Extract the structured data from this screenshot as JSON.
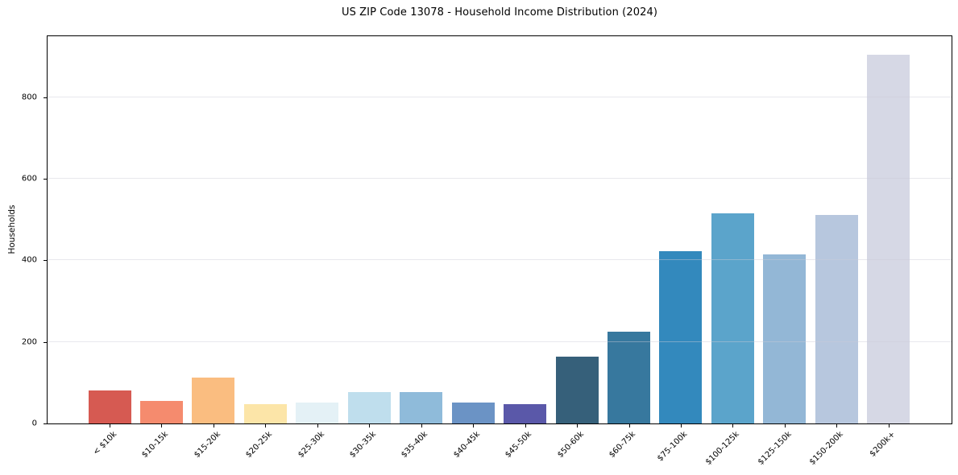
{
  "chart_data": {
    "type": "bar",
    "title": "US ZIP Code 13078 - Household Income Distribution (2024)",
    "xlabel": "",
    "ylabel": "Households",
    "categories": [
      "< $10k",
      "$10-15k",
      "$15-20k",
      "$20-25k",
      "$25-30k",
      "$30-35k",
      "$35-40k",
      "$40-45k",
      "$45-50k",
      "$50-60k",
      "$60-75k",
      "$75-100k",
      "$100-125k",
      "$125-150k",
      "$150-200k",
      "$200k+"
    ],
    "values": [
      81,
      55,
      112,
      47,
      51,
      78,
      78,
      52,
      48,
      163,
      226,
      422,
      516,
      414,
      511,
      905
    ],
    "bar_colors": [
      "#d65a52",
      "#f58b6e",
      "#fabd80",
      "#fce5a8",
      "#e4f1f6",
      "#bfdeed",
      "#8fbbda",
      "#6b93c5",
      "#5a58a9",
      "#36607a",
      "#37789e",
      "#3389bd",
      "#5ba4cb",
      "#93b7d6",
      "#b7c7de",
      "#d6d8e5"
    ],
    "yticks": [
      0,
      200,
      400,
      600,
      800
    ],
    "ylim": [
      0,
      950
    ],
    "grid": "horizontal",
    "legend": "none",
    "background_color": "#ffffff",
    "spine_color": "#000000"
  }
}
